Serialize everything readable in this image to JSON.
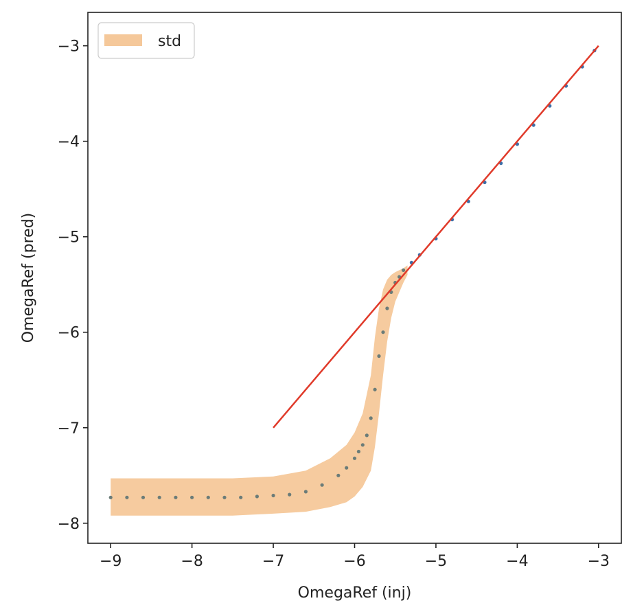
{
  "chart_data": {
    "type": "scatter",
    "title": "",
    "xlabel": "OmegaRef (inj)",
    "ylabel": "OmegaRef (pred)",
    "xlim": [
      -9.28,
      -2.72
    ],
    "ylim": [
      -8.21,
      -2.65
    ],
    "xticks": [
      -9,
      -8,
      -7,
      -6,
      -5,
      -4,
      -3
    ],
    "yticks": [
      -8,
      -7,
      -6,
      -5,
      -4,
      -3
    ],
    "xtick_labels": [
      "−9",
      "−8",
      "−7",
      "−6",
      "−5",
      "−4",
      "−3"
    ],
    "ytick_labels": [
      "−8",
      "−7",
      "−6",
      "−5",
      "−4",
      "−3"
    ],
    "grid": false,
    "legend": {
      "location": "top-left",
      "entries": [
        {
          "label": "std",
          "kind": "band"
        }
      ]
    },
    "colors": {
      "scatter": "#3d6fa8",
      "scatter_over_band": "#6b7c78",
      "band": "#f5c89a",
      "line": "#e03a2a",
      "axes": "#222222"
    },
    "series": [
      {
        "name": "prediction mean",
        "kind": "scatter",
        "x": [
          -9.0,
          -8.8,
          -8.6,
          -8.4,
          -8.2,
          -8.0,
          -7.8,
          -7.6,
          -7.4,
          -7.2,
          -7.0,
          -6.8,
          -6.6,
          -6.4,
          -6.2,
          -6.1,
          -6.0,
          -5.95,
          -5.9,
          -5.85,
          -5.8,
          -5.75,
          -5.7,
          -5.65,
          -5.6,
          -5.55,
          -5.5,
          -5.45,
          -5.4,
          -5.3,
          -5.2,
          -5.0,
          -4.8,
          -4.6,
          -4.4,
          -4.2,
          -4.0,
          -3.8,
          -3.6,
          -3.4,
          -3.2,
          -3.05
        ],
        "y": [
          -7.73,
          -7.73,
          -7.73,
          -7.73,
          -7.73,
          -7.73,
          -7.73,
          -7.73,
          -7.73,
          -7.72,
          -7.71,
          -7.7,
          -7.67,
          -7.6,
          -7.5,
          -7.42,
          -7.32,
          -7.25,
          -7.18,
          -7.08,
          -6.9,
          -6.6,
          -6.25,
          -6.0,
          -5.75,
          -5.58,
          -5.48,
          -5.42,
          -5.35,
          -5.27,
          -5.19,
          -5.02,
          -4.82,
          -4.63,
          -4.43,
          -4.23,
          -4.03,
          -3.83,
          -3.63,
          -3.42,
          -3.22,
          -3.05
        ]
      },
      {
        "name": "std",
        "kind": "band",
        "x": [
          -9.0,
          -8.5,
          -8.0,
          -7.5,
          -7.0,
          -6.6,
          -6.3,
          -6.1,
          -6.0,
          -5.9,
          -5.8,
          -5.75,
          -5.7,
          -5.65,
          -5.6,
          -5.55,
          -5.5,
          -5.45,
          -5.4,
          -5.35
        ],
        "lower": [
          -7.92,
          -7.92,
          -7.92,
          -7.92,
          -7.9,
          -7.88,
          -7.83,
          -7.78,
          -7.72,
          -7.62,
          -7.45,
          -7.2,
          -6.85,
          -6.45,
          -6.1,
          -5.85,
          -5.68,
          -5.58,
          -5.48,
          -5.4
        ],
        "upper": [
          -7.53,
          -7.53,
          -7.53,
          -7.53,
          -7.51,
          -7.45,
          -7.32,
          -7.18,
          -7.05,
          -6.85,
          -6.45,
          -6.05,
          -5.75,
          -5.55,
          -5.45,
          -5.4,
          -5.37,
          -5.35,
          -5.33,
          -5.3
        ]
      },
      {
        "name": "reference",
        "kind": "line",
        "x": [
          -7.0,
          -3.0
        ],
        "y": [
          -7.0,
          -3.0
        ]
      }
    ]
  }
}
